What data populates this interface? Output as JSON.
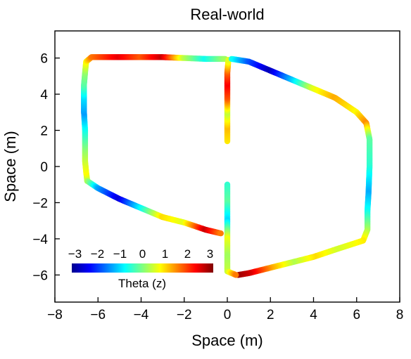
{
  "chart_data": {
    "type": "scatter",
    "title": "Real-world",
    "xlabel": "Space (m)",
    "ylabel": "Space (m)",
    "xlim": [
      -8,
      8
    ],
    "ylim": [
      -7.5,
      7.5
    ],
    "xticks": [
      -8,
      -6,
      -4,
      -2,
      0,
      2,
      4,
      6,
      8
    ],
    "xtick_labels": [
      "−8",
      "−6",
      "−4",
      "−2",
      "0",
      "2",
      "4",
      "6",
      "8"
    ],
    "yticks": [
      -6,
      -4,
      -2,
      0,
      2,
      4,
      6
    ],
    "ytick_labels": [
      "−6",
      "−4",
      "−2",
      "0",
      "2",
      "4",
      "6"
    ],
    "grid": false,
    "colormap": "jet",
    "colorbar": {
      "label": "Theta (z)",
      "range": [
        -3.14,
        3.14
      ],
      "ticks": [
        -3,
        -2,
        -1,
        0,
        1,
        2,
        3
      ],
      "tick_labels": [
        "−3",
        "−2",
        "−1",
        "0",
        "1",
        "2",
        "3"
      ],
      "placement": "inside lower-left"
    },
    "series": [
      {
        "points": [
          {
            "x": -6.5,
            "y": -0.8,
            "theta": 0.2
          },
          {
            "x": -6.55,
            "y": -0.3,
            "theta": 0.8
          },
          {
            "x": -6.6,
            "y": 0.3,
            "theta": 0.5
          },
          {
            "x": -6.6,
            "y": 1.0,
            "theta": 0.1
          },
          {
            "x": -6.6,
            "y": 2.0,
            "theta": -0.6
          },
          {
            "x": -6.65,
            "y": 3.0,
            "theta": -1.4
          },
          {
            "x": -6.65,
            "y": 3.8,
            "theta": -1.0
          },
          {
            "x": -6.65,
            "y": 4.5,
            "theta": -0.3
          },
          {
            "x": -6.6,
            "y": 5.2,
            "theta": 0.1
          },
          {
            "x": -6.55,
            "y": 5.8,
            "theta": 0.8
          },
          {
            "x": -6.3,
            "y": 6.05,
            "theta": 1.6
          },
          {
            "x": -5.0,
            "y": 6.05,
            "theta": 2.5
          },
          {
            "x": -4.0,
            "y": 6.05,
            "theta": 1.8
          },
          {
            "x": -3.0,
            "y": 6.05,
            "theta": 2.7
          },
          {
            "x": -2.0,
            "y": 6.0,
            "theta": 0.4
          },
          {
            "x": -1.0,
            "y": 5.95,
            "theta": -0.7
          },
          {
            "x": -0.1,
            "y": 5.95,
            "theta": 0.2
          }
        ]
      },
      {
        "points": [
          {
            "x": 0.0,
            "y": 1.4,
            "theta": 0.9
          },
          {
            "x": 0.0,
            "y": 2.2,
            "theta": 1.2
          },
          {
            "x": 0.0,
            "y": 3.0,
            "theta": 0.4
          },
          {
            "x": 0.0,
            "y": 3.8,
            "theta": 1.8
          },
          {
            "x": 0.0,
            "y": 4.6,
            "theta": 2.4
          },
          {
            "x": 0.0,
            "y": 5.2,
            "theta": 1.8
          },
          {
            "x": 0.05,
            "y": 5.9,
            "theta": 0.6
          }
        ]
      },
      {
        "points": [
          {
            "x": 0.2,
            "y": 5.95,
            "theta": -0.6
          },
          {
            "x": 1.0,
            "y": 5.8,
            "theta": -1.8
          },
          {
            "x": 2.0,
            "y": 5.3,
            "theta": -2.8
          },
          {
            "x": 3.0,
            "y": 4.8,
            "theta": -1.2
          },
          {
            "x": 4.0,
            "y": 4.3,
            "theta": 0.6
          },
          {
            "x": 5.0,
            "y": 3.8,
            "theta": 1.3
          },
          {
            "x": 6.0,
            "y": 3.0,
            "theta": 0.8
          },
          {
            "x": 6.45,
            "y": 2.4,
            "theta": 1.5
          },
          {
            "x": 6.6,
            "y": 1.5,
            "theta": -0.2
          },
          {
            "x": 6.6,
            "y": 0.0,
            "theta": -0.5
          },
          {
            "x": 6.55,
            "y": -1.5,
            "theta": -1.3
          },
          {
            "x": 6.5,
            "y": -2.5,
            "theta": -0.7
          },
          {
            "x": 6.5,
            "y": -3.5,
            "theta": 0.2
          },
          {
            "x": 6.3,
            "y": -4.1,
            "theta": 0.9
          },
          {
            "x": 5.0,
            "y": -4.6,
            "theta": 0.5
          },
          {
            "x": 4.0,
            "y": -5.0,
            "theta": 1.0
          },
          {
            "x": 3.0,
            "y": -5.3,
            "theta": 0.3
          },
          {
            "x": 2.0,
            "y": -5.6,
            "theta": 1.3
          },
          {
            "x": 1.0,
            "y": -5.9,
            "theta": 2.6
          },
          {
            "x": 0.5,
            "y": -6.0,
            "theta": 2.9
          }
        ]
      },
      {
        "points": [
          {
            "x": 0.0,
            "y": -1.0,
            "theta": -0.5
          },
          {
            "x": 0.0,
            "y": -2.0,
            "theta": -0.2
          },
          {
            "x": 0.0,
            "y": -3.0,
            "theta": -1.0
          },
          {
            "x": 0.0,
            "y": -4.0,
            "theta": 0.7
          },
          {
            "x": 0.0,
            "y": -5.0,
            "theta": 0.2
          },
          {
            "x": 0.0,
            "y": -5.8,
            "theta": 0.4
          },
          {
            "x": 0.4,
            "y": -6.0,
            "theta": 1.6
          }
        ]
      },
      {
        "points": [
          {
            "x": -6.5,
            "y": -0.8,
            "theta": 0.3
          },
          {
            "x": -6.0,
            "y": -1.2,
            "theta": -1.3
          },
          {
            "x": -5.0,
            "y": -1.8,
            "theta": -2.6
          },
          {
            "x": -4.0,
            "y": -2.3,
            "theta": -0.8
          },
          {
            "x": -3.0,
            "y": -2.8,
            "theta": 1.0
          },
          {
            "x": -2.0,
            "y": -3.1,
            "theta": 0.6
          },
          {
            "x": -1.0,
            "y": -3.5,
            "theta": 2.7
          },
          {
            "x": -0.3,
            "y": -3.7,
            "theta": 1.6
          }
        ]
      }
    ]
  }
}
